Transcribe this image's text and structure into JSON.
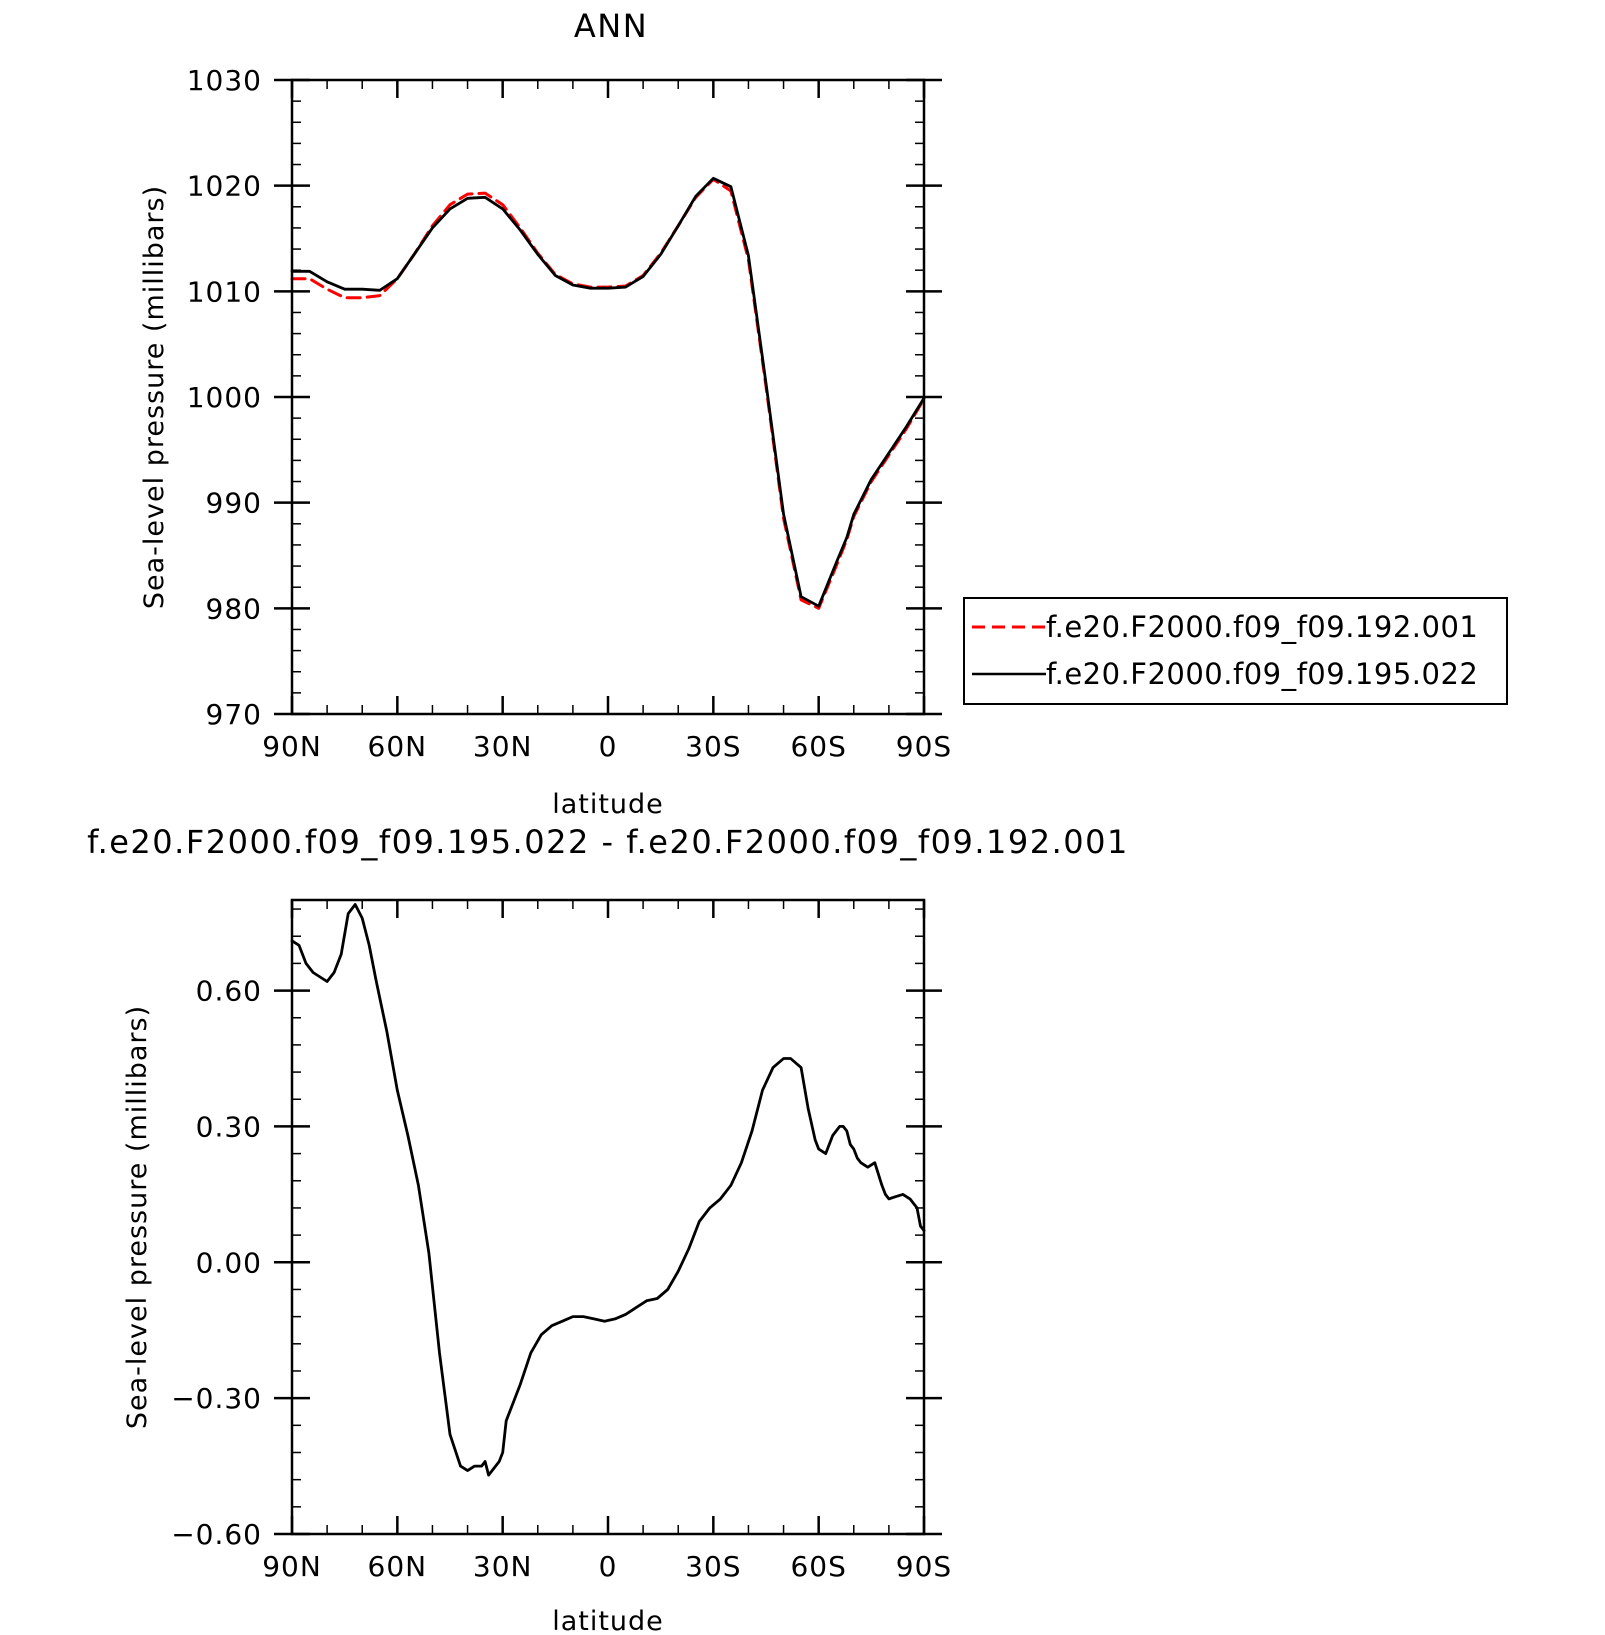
{
  "chart_data": [
    {
      "type": "line",
      "title": "ANN",
      "xlabel": "latitude",
      "ylabel": "Sea-level pressure (millibars)",
      "xlim": [
        90,
        -90
      ],
      "ylim": [
        970,
        1030
      ],
      "x_ticks": [
        {
          "value": 90,
          "label": "90N"
        },
        {
          "value": 60,
          "label": "60N"
        },
        {
          "value": 30,
          "label": "30N"
        },
        {
          "value": 0,
          "label": "0"
        },
        {
          "value": -30,
          "label": "30S"
        },
        {
          "value": -60,
          "label": "60S"
        },
        {
          "value": -90,
          "label": "90S"
        }
      ],
      "y_ticks": [
        {
          "value": 970,
          "label": "970"
        },
        {
          "value": 980,
          "label": "980"
        },
        {
          "value": 990,
          "label": "990"
        },
        {
          "value": 1000,
          "label": "1000"
        },
        {
          "value": 1010,
          "label": "1010"
        },
        {
          "value": 1020,
          "label": "1020"
        },
        {
          "value": 1030,
          "label": "1030"
        }
      ],
      "legend_position": "right",
      "x": [
        90,
        85,
        80,
        75,
        70,
        65,
        60,
        55,
        50,
        45,
        40,
        35,
        30,
        25,
        20,
        15,
        10,
        5,
        0,
        -5,
        -10,
        -15,
        -20,
        -25,
        -30,
        -35,
        -40,
        -45,
        -50,
        -55,
        -60,
        -65,
        -68,
        -70,
        -75,
        -80,
        -85,
        -90
      ],
      "series": [
        {
          "name": "f.e20.F2000.f09_f09.192.001",
          "color": "#ff0000",
          "dash": "dashed",
          "values": [
            1011.2,
            1011.2,
            1010.2,
            1009.4,
            1009.4,
            1009.6,
            1011.2,
            1013.6,
            1016.2,
            1018.2,
            1019.2,
            1019.3,
            1018.2,
            1016.0,
            1013.6,
            1011.6,
            1010.7,
            1010.4,
            1010.4,
            1010.5,
            1011.5,
            1013.6,
            1016.2,
            1018.9,
            1020.6,
            1019.5,
            1013.0,
            1001.0,
            988.5,
            980.8,
            980.0,
            984.0,
            986.5,
            988.7,
            992.0,
            994.5,
            997.0,
            999.8
          ]
        },
        {
          "name": "f.e20.F2000.f09_f09.195.022",
          "color": "#000000",
          "dash": "solid",
          "values": [
            1011.9,
            1011.9,
            1010.9,
            1010.2,
            1010.2,
            1010.1,
            1011.2,
            1013.6,
            1016.0,
            1017.8,
            1018.8,
            1018.9,
            1017.8,
            1015.8,
            1013.5,
            1011.5,
            1010.6,
            1010.3,
            1010.3,
            1010.4,
            1011.4,
            1013.5,
            1016.2,
            1019.0,
            1020.7,
            1019.9,
            1013.4,
            1001.3,
            988.9,
            981.1,
            980.2,
            984.3,
            986.7,
            988.9,
            992.2,
            994.7,
            997.2,
            999.9
          ]
        }
      ]
    },
    {
      "type": "line",
      "title": "f.e20.F2000.f09_f09.195.022 - f.e20.F2000.f09_f09.192.001",
      "xlabel": "latitude",
      "ylabel": "Sea-level pressure (millibars)",
      "xlim": [
        90,
        -90
      ],
      "ylim": [
        -0.6,
        0.8
      ],
      "x_ticks": [
        {
          "value": 90,
          "label": "90N"
        },
        {
          "value": 60,
          "label": "60N"
        },
        {
          "value": 30,
          "label": "30N"
        },
        {
          "value": 0,
          "label": "0"
        },
        {
          "value": -30,
          "label": "30S"
        },
        {
          "value": -60,
          "label": "60S"
        },
        {
          "value": -90,
          "label": "90S"
        }
      ],
      "y_ticks": [
        {
          "value": -0.6,
          "label": "−0.60"
        },
        {
          "value": -0.3,
          "label": "−0.30"
        },
        {
          "value": 0.0,
          "label": "0.00"
        },
        {
          "value": 0.3,
          "label": "0.30"
        },
        {
          "value": 0.6,
          "label": "0.60"
        }
      ],
      "x": [
        90,
        88,
        86,
        84,
        82,
        80,
        78,
        76,
        74,
        72,
        70,
        68,
        66,
        63,
        60,
        57,
        54,
        51,
        48,
        45,
        42,
        40,
        38,
        36,
        35,
        34,
        33,
        32,
        31,
        30,
        29,
        27,
        25,
        22,
        19,
        16,
        13,
        10,
        7,
        4,
        1,
        -2,
        -5,
        -8,
        -11,
        -14,
        -17,
        -20,
        -23,
        -26,
        -29,
        -32,
        -35,
        -38,
        -41,
        -44,
        -47,
        -50,
        -52,
        -55,
        -57,
        -59,
        -60,
        -62,
        -64,
        -66,
        -67,
        -68,
        -69,
        -70,
        -71,
        -72,
        -74,
        -76,
        -78,
        -79,
        -80,
        -82,
        -84,
        -86,
        -88,
        -89,
        -90
      ],
      "series": [
        {
          "name": "",
          "color": "#000000",
          "dash": "solid",
          "values": [
            0.71,
            0.7,
            0.66,
            0.64,
            0.63,
            0.62,
            0.64,
            0.68,
            0.77,
            0.79,
            0.76,
            0.7,
            0.62,
            0.51,
            0.38,
            0.28,
            0.17,
            0.02,
            -0.2,
            -0.38,
            -0.45,
            -0.46,
            -0.45,
            -0.45,
            -0.44,
            -0.47,
            -0.46,
            -0.45,
            -0.44,
            -0.42,
            -0.35,
            -0.31,
            -0.27,
            -0.2,
            -0.16,
            -0.14,
            -0.13,
            -0.12,
            -0.12,
            -0.125,
            -0.13,
            -0.125,
            -0.115,
            -0.1,
            -0.085,
            -0.08,
            -0.06,
            -0.02,
            0.03,
            0.09,
            0.12,
            0.14,
            0.17,
            0.22,
            0.29,
            0.38,
            0.43,
            0.45,
            0.45,
            0.43,
            0.34,
            0.27,
            0.25,
            0.24,
            0.28,
            0.3,
            0.3,
            0.29,
            0.26,
            0.25,
            0.23,
            0.22,
            0.21,
            0.22,
            0.17,
            0.15,
            0.14,
            0.145,
            0.15,
            0.14,
            0.12,
            0.08,
            0.07
          ]
        }
      ]
    }
  ]
}
